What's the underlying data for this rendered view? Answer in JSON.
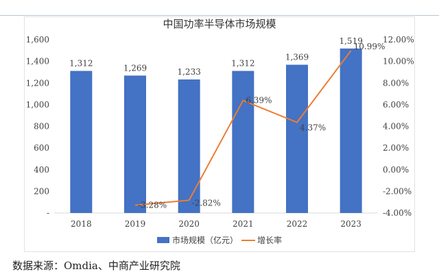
{
  "chart_data": {
    "type": "bar",
    "title": "中国功率半导体市场规模",
    "categories": [
      "2018",
      "2019",
      "2020",
      "2021",
      "2022",
      "2023"
    ],
    "series": [
      {
        "name": "市场规模（亿元）",
        "type": "bar",
        "axis": "left",
        "color": "#4472c4",
        "values": [
          1312,
          1269,
          1233,
          1312,
          1369,
          1519
        ],
        "labels": [
          "1,312",
          "1,269",
          "1,233",
          "1,312",
          "1,369",
          "1,519"
        ]
      },
      {
        "name": "增长率",
        "type": "line",
        "axis": "right",
        "color": "#ed7d31",
        "x": [
          "2019",
          "2020",
          "2021",
          "2022",
          "2023"
        ],
        "values": [
          -3.28,
          -2.82,
          6.39,
          4.37,
          10.99
        ],
        "labels": [
          "-3.28%",
          "-2.82%",
          "6.39%",
          "4.37%",
          "10.99%"
        ]
      }
    ],
    "left_axis": {
      "ylim": [
        0,
        1600
      ],
      "ticks": [
        "-",
        "200",
        "400",
        "600",
        "800",
        "1,000",
        "1,200",
        "1,400",
        "1,600"
      ]
    },
    "right_axis": {
      "ylim": [
        -4,
        12
      ],
      "ticks": [
        "-4.00%",
        "-2.00%",
        "0.00%",
        "2.00%",
        "4.00%",
        "6.00%",
        "8.00%",
        "10.00%",
        "12.00%"
      ]
    },
    "legend": "bottom",
    "grid": false
  },
  "source": "数据来源：Omdia、中商产业研究院"
}
